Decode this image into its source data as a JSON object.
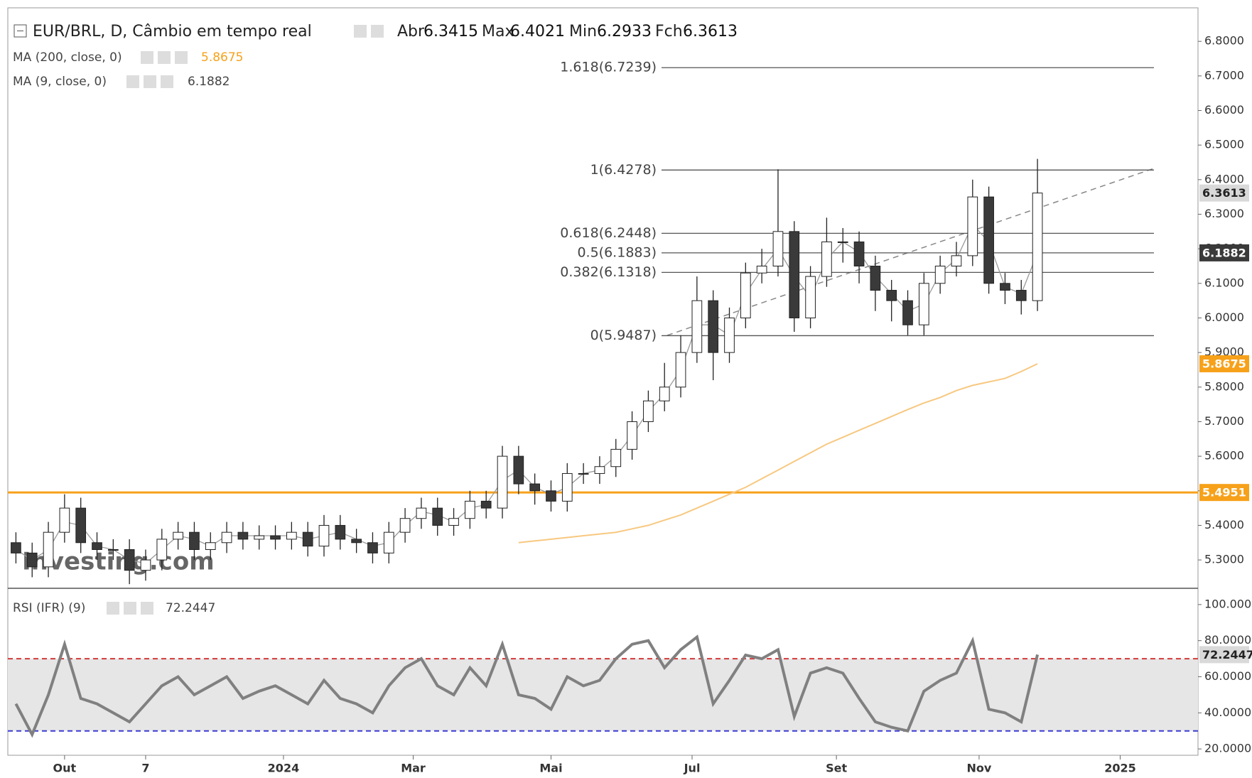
{
  "header": {
    "symbol": "EUR/BRL, D, Câmbio em tempo real",
    "open_label": "Abr",
    "open": 6.3415,
    "high_label": "Max",
    "high": 6.4021,
    "low_label": "Min",
    "low": 6.2933,
    "close_label": "Fch",
    "close": 6.3613
  },
  "watermark": "Investing.com",
  "chart_data": [
    {
      "type": "candlestick",
      "xlim": [
        -0.5,
        72.9
      ],
      "xticks": [
        {
          "value": 3,
          "label": "Out"
        },
        {
          "value": 8,
          "label": "7"
        },
        {
          "value": 16.5,
          "label": "2024"
        },
        {
          "value": 24.5,
          "label": "Mar"
        },
        {
          "value": 33,
          "label": "Mai"
        },
        {
          "value": 41.7,
          "label": "Jul"
        },
        {
          "value": 50.6,
          "label": "Set"
        },
        {
          "value": 59.4,
          "label": "Nov"
        },
        {
          "value": 68.1,
          "label": "2025"
        }
      ],
      "ylim": [
        5.218,
        6.897
      ],
      "yticks": [
        {
          "value": 5.3,
          "label": "5.3000"
        },
        {
          "value": 5.4,
          "label": "5.4000"
        },
        {
          "value": 5.5,
          "label": "5.5000"
        },
        {
          "value": 5.6,
          "label": "5.6000"
        },
        {
          "value": 5.7,
          "label": "5.7000"
        },
        {
          "value": 5.8,
          "label": "5.8000"
        },
        {
          "value": 5.9,
          "label": "5.9000"
        },
        {
          "value": 6.0,
          "label": "6.0000"
        },
        {
          "value": 6.1,
          "label": "6.1000"
        },
        {
          "value": 6.2,
          "label": "6.2000"
        },
        {
          "value": 6.3,
          "label": "6.3000"
        },
        {
          "value": 6.4,
          "label": "6.4000"
        },
        {
          "value": 6.5,
          "label": "6.5000"
        },
        {
          "value": 6.6,
          "label": "6.6000"
        },
        {
          "value": 6.7,
          "label": "6.7000"
        },
        {
          "value": 6.8,
          "label": "6.8000"
        }
      ],
      "up_color": "#ffffff",
      "down_color": "#3a3a3a",
      "open": [
        5.35,
        5.32,
        5.28,
        5.38,
        5.45,
        5.35,
        5.33,
        5.33,
        5.27,
        5.3,
        5.36,
        5.38,
        5.33,
        5.35,
        5.38,
        5.36,
        5.37,
        5.36,
        5.38,
        5.34,
        5.4,
        5.36,
        5.35,
        5.32,
        5.38,
        5.42,
        5.45,
        5.4,
        5.42,
        5.47,
        5.45,
        5.6,
        5.52,
        5.5,
        5.47,
        5.55,
        5.55,
        5.57,
        5.62,
        5.7,
        5.76,
        5.8,
        5.9,
        6.05,
        5.9,
        6.0,
        6.13,
        6.15,
        6.25,
        6.0,
        6.12,
        6.22,
        6.22,
        6.15,
        6.08,
        6.05,
        5.98,
        6.1,
        6.15,
        6.18,
        6.35,
        6.1,
        6.08,
        6.05
      ],
      "high": [
        5.38,
        5.35,
        5.41,
        5.49,
        5.48,
        5.38,
        5.36,
        5.36,
        5.33,
        5.39,
        5.41,
        5.41,
        5.38,
        5.41,
        5.41,
        5.4,
        5.4,
        5.41,
        5.41,
        5.43,
        5.43,
        5.39,
        5.38,
        5.41,
        5.45,
        5.48,
        5.48,
        5.45,
        5.5,
        5.5,
        5.63,
        5.63,
        5.55,
        5.53,
        5.58,
        5.58,
        5.6,
        5.65,
        5.73,
        5.79,
        5.87,
        5.95,
        6.12,
        6.08,
        6.03,
        6.16,
        6.2,
        6.43,
        6.28,
        6.15,
        6.29,
        6.26,
        6.25,
        6.18,
        6.11,
        6.08,
        6.13,
        6.18,
        6.22,
        6.4,
        6.38,
        6.13,
        6.11,
        6.46
      ],
      "low": [
        5.29,
        5.25,
        5.25,
        5.35,
        5.32,
        5.3,
        5.3,
        5.23,
        5.24,
        5.27,
        5.33,
        5.3,
        5.3,
        5.32,
        5.33,
        5.33,
        5.33,
        5.33,
        5.31,
        5.31,
        5.33,
        5.32,
        5.29,
        5.29,
        5.35,
        5.39,
        5.37,
        5.37,
        5.39,
        5.42,
        5.42,
        5.49,
        5.46,
        5.44,
        5.44,
        5.52,
        5.52,
        5.54,
        5.59,
        5.67,
        5.73,
        5.77,
        5.87,
        5.82,
        5.87,
        5.97,
        6.1,
        6.12,
        5.96,
        5.97,
        6.09,
        6.16,
        6.1,
        6.02,
        5.99,
        5.95,
        5.95,
        6.07,
        6.12,
        6.15,
        6.07,
        6.04,
        6.01,
        6.02
      ],
      "close": [
        5.32,
        5.28,
        5.38,
        5.45,
        5.35,
        5.33,
        5.33,
        5.27,
        5.3,
        5.36,
        5.38,
        5.33,
        5.35,
        5.38,
        5.36,
        5.37,
        5.36,
        5.38,
        5.34,
        5.4,
        5.36,
        5.35,
        5.32,
        5.38,
        5.42,
        5.45,
        5.4,
        5.42,
        5.47,
        5.45,
        5.6,
        5.52,
        5.5,
        5.47,
        5.55,
        5.55,
        5.57,
        5.62,
        5.7,
        5.76,
        5.8,
        5.9,
        6.05,
        5.9,
        6.0,
        6.13,
        6.15,
        6.25,
        6.0,
        6.12,
        6.22,
        6.22,
        6.15,
        6.08,
        6.05,
        5.98,
        6.1,
        6.15,
        6.18,
        6.35,
        6.1,
        6.08,
        6.05,
        6.3613
      ],
      "last_color": "#d9d9d9",
      "series": [
        {
          "name": "MA (200, close, 0)",
          "color": "#f7c880",
          "values": [
            null,
            null,
            null,
            null,
            null,
            null,
            null,
            null,
            null,
            null,
            null,
            null,
            null,
            null,
            null,
            null,
            null,
            null,
            null,
            null,
            null,
            null,
            null,
            null,
            null,
            null,
            null,
            null,
            null,
            null,
            null,
            5.35,
            5.355,
            5.36,
            5.365,
            5.37,
            5.375,
            5.38,
            5.39,
            5.4,
            5.415,
            5.43,
            5.45,
            5.47,
            5.49,
            5.51,
            5.535,
            5.56,
            5.585,
            5.61,
            5.635,
            5.655,
            5.675,
            5.695,
            5.715,
            5.735,
            5.754,
            5.77,
            5.79,
            5.805,
            5.815,
            5.825,
            5.845,
            5.8675
          ],
          "badge_color": "#f7a11a"
        },
        {
          "name": "MA (9, close, 0)",
          "color": "#9a9a9a",
          "values": [
            5.33,
            5.3,
            5.33,
            5.41,
            5.4,
            5.34,
            5.33,
            5.3,
            5.29,
            5.33,
            5.37,
            5.36,
            5.34,
            5.37,
            5.37,
            5.37,
            5.37,
            5.37,
            5.36,
            5.37,
            5.38,
            5.36,
            5.34,
            5.35,
            5.4,
            5.44,
            5.43,
            5.41,
            5.45,
            5.46,
            5.53,
            5.56,
            5.51,
            5.49,
            5.51,
            5.55,
            5.56,
            5.6,
            5.66,
            5.73,
            5.78,
            5.85,
            5.98,
            5.98,
            5.95,
            6.07,
            6.14,
            6.2,
            6.12,
            6.06,
            6.17,
            6.22,
            6.19,
            6.12,
            6.07,
            6.02,
            6.04,
            6.13,
            6.17,
            6.27,
            6.22,
            6.09,
            6.07,
            6.1882
          ],
          "badge_color": "#3a3a3a"
        }
      ],
      "levels": [
        {
          "value": 5.4951,
          "color": "#f7a11a"
        }
      ],
      "fib_levels": [
        {
          "value": 6.7239,
          "label": "1.618(6.7239)"
        },
        {
          "value": 6.4278,
          "label": "1(6.4278)"
        },
        {
          "value": 6.2448,
          "label": "0.618(6.2448)"
        },
        {
          "value": 6.1883,
          "label": "0.5(6.1883)"
        },
        {
          "value": 6.1318,
          "label": "0.382(6.1318)"
        },
        {
          "value": 5.9487,
          "label": "0(5.9487)"
        }
      ]
    },
    {
      "type": "line",
      "ylim": [
        16.5,
        109
      ],
      "yticks": [
        {
          "value": 20,
          "label": "20.0000"
        },
        {
          "value": 40,
          "label": "40.0000"
        },
        {
          "value": 60,
          "label": "60.0000"
        },
        {
          "value": 80,
          "label": "80.0000"
        },
        {
          "value": 100,
          "label": "100.0000"
        }
      ],
      "series": [
        {
          "name": "RSI (IFR) (9)",
          "color": "#808080",
          "values": [
            45,
            28,
            50,
            78,
            48,
            45,
            40,
            35,
            45,
            55,
            60,
            50,
            55,
            60,
            48,
            52,
            55,
            50,
            45,
            58,
            48,
            45,
            40,
            55,
            65,
            70,
            55,
            50,
            65,
            55,
            78,
            50,
            48,
            42,
            60,
            55,
            58,
            70,
            78,
            80,
            65,
            75,
            82,
            45,
            58,
            72,
            70,
            75,
            38,
            62,
            65,
            62,
            48,
            35,
            32,
            30,
            52,
            58,
            62,
            80,
            42,
            40,
            35,
            72.2447
          ]
        }
      ],
      "levels": [
        {
          "value": 70,
          "color": "#d33a3a"
        },
        {
          "value": 30,
          "color": "#3a3ad3"
        }
      ]
    }
  ]
}
